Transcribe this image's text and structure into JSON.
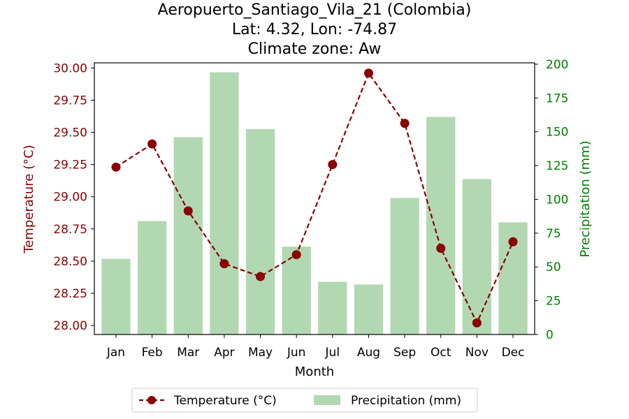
{
  "chart_data": {
    "type": "bar+line",
    "title_lines": [
      "Aeropuerto_Santiago_Vila_21 (Colombia)",
      "Lat: 4.32, Lon: -74.87",
      "Climate zone: Aw"
    ],
    "xlabel": "Month",
    "ylabel_left": "Temperature (°C)",
    "ylabel_right": "Precipitation (mm)",
    "categories": [
      "Jan",
      "Feb",
      "Mar",
      "Apr",
      "May",
      "Jun",
      "Jul",
      "Aug",
      "Sep",
      "Oct",
      "Nov",
      "Dec"
    ],
    "temperature": {
      "name": "Temperature (°C)",
      "values": [
        29.23,
        29.41,
        28.89,
        28.48,
        28.38,
        28.55,
        29.25,
        29.96,
        29.57,
        28.6,
        28.02,
        28.65
      ],
      "color": "#8b0000",
      "style": "dashed line with circle markers",
      "ylim": [
        27.93,
        30.04
      ],
      "ticks": [
        "28.00",
        "28.25",
        "28.50",
        "28.75",
        "29.00",
        "29.25",
        "29.50",
        "29.75",
        "30.00"
      ],
      "tick_values": [
        28.0,
        28.25,
        28.5,
        28.75,
        29.0,
        29.25,
        29.5,
        29.75,
        30.0
      ],
      "tick_color": "#8b0000"
    },
    "precipitation": {
      "name": "Precipitation (mm)",
      "values": [
        56,
        84,
        146,
        194,
        152,
        65,
        39,
        37,
        101,
        161,
        115,
        83
      ],
      "color": "#b2d8b2",
      "ylim": [
        0,
        201
      ],
      "ticks": [
        "0",
        "25",
        "50",
        "75",
        "100",
        "125",
        "150",
        "175",
        "200"
      ],
      "tick_values": [
        0,
        25,
        50,
        75,
        100,
        125,
        150,
        175,
        200
      ],
      "tick_color": "#008000"
    },
    "legend": {
      "placement": "bottom-center",
      "entries": [
        "Temperature (°C)",
        "Precipitation (mm)"
      ]
    },
    "grid": false
  }
}
